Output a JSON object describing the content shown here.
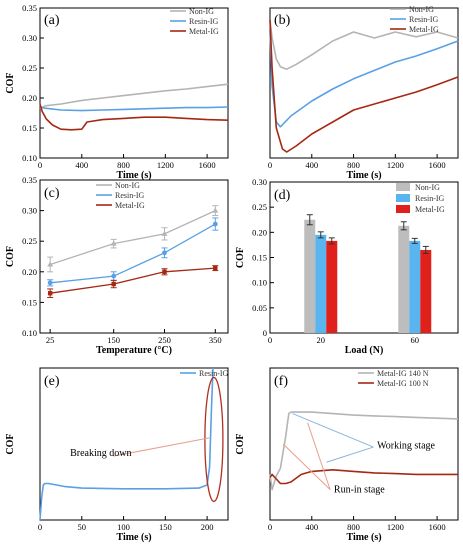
{
  "figure": {
    "colors": {
      "non_ig": "#b4b4b4",
      "resin_ig": "#5aa0e6",
      "metal_ig": "#a52814",
      "bar_non": "#bdbdbd",
      "bar_resin": "#5ab4f0",
      "bar_metal": "#e0201a",
      "ellipse": "#b03020",
      "annot_line": "#e6a08c"
    }
  },
  "chart_data": [
    {
      "panel": "(a)",
      "type": "line",
      "xlabel": "Time (s)",
      "ylabel": "COF",
      "xlim": [
        0,
        1800
      ],
      "ylim": [
        0.1,
        0.35
      ],
      "xticks": [
        "0",
        "400",
        "800",
        "1200",
        "1600"
      ],
      "yticks": [
        "0.10",
        "0.15",
        "0.20",
        "0.25",
        "0.30",
        "0.35"
      ],
      "legend": "top-right",
      "series": [
        {
          "name": "Non-IG",
          "color": "#b4b4b4",
          "x": [
            0,
            50,
            200,
            400,
            600,
            800,
            1000,
            1200,
            1400,
            1600,
            1800
          ],
          "y": [
            0.182,
            0.187,
            0.19,
            0.196,
            0.2,
            0.204,
            0.208,
            0.212,
            0.215,
            0.219,
            0.223
          ]
        },
        {
          "name": "Resin-IG",
          "color": "#5aa0e6",
          "x": [
            0,
            50,
            200,
            400,
            600,
            800,
            1000,
            1200,
            1400,
            1600,
            1800
          ],
          "y": [
            0.185,
            0.183,
            0.18,
            0.179,
            0.18,
            0.181,
            0.182,
            0.183,
            0.184,
            0.184,
            0.185
          ]
        },
        {
          "name": "Metal-IG",
          "color": "#a52814",
          "x": [
            0,
            20,
            60,
            120,
            200,
            300,
            400,
            450,
            600,
            800,
            1000,
            1200,
            1400,
            1600,
            1800
          ],
          "y": [
            0.19,
            0.178,
            0.165,
            0.155,
            0.148,
            0.147,
            0.148,
            0.16,
            0.164,
            0.166,
            0.168,
            0.168,
            0.166,
            0.164,
            0.163
          ]
        }
      ]
    },
    {
      "panel": "(b)",
      "type": "line",
      "xlabel": "Time (s)",
      "ylabel": "",
      "xlim": [
        0,
        1800
      ],
      "ylim": [
        0.1,
        0.35
      ],
      "xticks": [
        "0",
        "400",
        "800",
        "1200",
        "1600"
      ],
      "yticks": [],
      "legend": "top-right",
      "series": [
        {
          "name": "Non-IG",
          "color": "#b4b4b4",
          "x": [
            0,
            20,
            60,
            100,
            160,
            250,
            400,
            600,
            800,
            1000,
            1200,
            1400,
            1600,
            1800
          ],
          "y": [
            0.33,
            0.3,
            0.265,
            0.252,
            0.248,
            0.256,
            0.272,
            0.295,
            0.31,
            0.3,
            0.31,
            0.302,
            0.31,
            0.3
          ]
        },
        {
          "name": "Resin-IG",
          "color": "#5aa0e6",
          "x": [
            0,
            20,
            60,
            100,
            200,
            400,
            600,
            800,
            1000,
            1200,
            1400,
            1600,
            1800
          ],
          "y": [
            0.31,
            0.22,
            0.16,
            0.152,
            0.17,
            0.195,
            0.215,
            0.232,
            0.246,
            0.26,
            0.27,
            0.282,
            0.295
          ]
        },
        {
          "name": "Metal-IG",
          "color": "#a52814",
          "x": [
            0,
            20,
            60,
            120,
            160,
            250,
            400,
            600,
            800,
            1000,
            1200,
            1400,
            1600,
            1800
          ],
          "y": [
            0.33,
            0.25,
            0.15,
            0.115,
            0.11,
            0.12,
            0.14,
            0.16,
            0.18,
            0.19,
            0.2,
            0.21,
            0.222,
            0.235
          ]
        }
      ]
    },
    {
      "panel": "(c)",
      "type": "line",
      "xlabel": "Temperature (°C)",
      "ylabel": "COF",
      "categories": [
        "25",
        "150",
        "250",
        "350"
      ],
      "ylim": [
        0.1,
        0.35
      ],
      "xticks": [
        "25",
        "150",
        "250",
        "350"
      ],
      "yticks": [
        "0.10",
        "0.15",
        "0.20",
        "0.25",
        "0.30",
        "0.35"
      ],
      "legend": "top-right",
      "series": [
        {
          "name": "Non-IG",
          "color": "#b4b4b4",
          "values": [
            0.212,
            0.246,
            0.262,
            0.3
          ],
          "errors": [
            0.012,
            0.007,
            0.01,
            0.008
          ]
        },
        {
          "name": "Resin-IG",
          "color": "#5aa0e6",
          "values": [
            0.182,
            0.193,
            0.231,
            0.278
          ],
          "errors": [
            0.005,
            0.007,
            0.008,
            0.01
          ]
        },
        {
          "name": "Metal-IG",
          "color": "#a52814",
          "values": [
            0.165,
            0.18,
            0.2,
            0.206
          ],
          "errors": [
            0.007,
            0.006,
            0.005,
            0.004
          ]
        }
      ]
    },
    {
      "panel": "(d)",
      "type": "bar",
      "xlabel": "Load (N)",
      "ylabel": "COF",
      "categories": [
        "20",
        "60"
      ],
      "ylim": [
        0,
        0.3
      ],
      "yticks": [
        "0",
        "0.05",
        "0.10",
        "0.15",
        "0.20",
        "0.25",
        "0.30"
      ],
      "legend": "top-right",
      "series": [
        {
          "name": "Non-IG",
          "color": "#bdbdbd",
          "values": [
            0.225,
            0.213
          ],
          "errors": [
            0.01,
            0.008
          ]
        },
        {
          "name": "Resin-IG",
          "color": "#5ab4f0",
          "values": [
            0.195,
            0.183
          ],
          "errors": [
            0.006,
            0.005
          ]
        },
        {
          "name": "Metal-IG",
          "color": "#e0201a",
          "values": [
            0.183,
            0.165
          ],
          "errors": [
            0.006,
            0.007
          ]
        }
      ]
    },
    {
      "panel": "(e)",
      "type": "line",
      "xlabel": "Time (s)",
      "ylabel": "COF",
      "xlim": [
        0,
        225
      ],
      "ylim": [
        0,
        1
      ],
      "xticks": [
        "0",
        "50",
        "100",
        "150",
        "200"
      ],
      "yticks": [],
      "legend": "top-right",
      "annotations": [
        {
          "text": "Breaking down"
        }
      ],
      "series": [
        {
          "name": "Resin-IG",
          "color": "#5aa0e6",
          "x": [
            0,
            2,
            4,
            6,
            10,
            20,
            30,
            50,
            100,
            150,
            190,
            200,
            203,
            205,
            207
          ],
          "y": [
            0.0,
            0.15,
            0.23,
            0.24,
            0.24,
            0.23,
            0.22,
            0.21,
            0.205,
            0.205,
            0.21,
            0.23,
            0.35,
            0.7,
            1.0
          ]
        }
      ]
    },
    {
      "panel": "(f)",
      "type": "line",
      "xlabel": "Time (s)",
      "ylabel": "COF",
      "xlim": [
        0,
        1800
      ],
      "ylim": [
        0,
        1
      ],
      "xticks": [
        "0",
        "400",
        "800",
        "1200",
        "1600"
      ],
      "yticks": [],
      "legend": "top-right",
      "annotations": [
        {
          "text": "Working stage"
        },
        {
          "text": "Run-in stage"
        }
      ],
      "series": [
        {
          "name": "Metal-IG 140 N",
          "color": "#b4b4b4",
          "x": [
            0,
            20,
            60,
            100,
            150,
            180,
            200,
            400,
            600,
            800,
            1000,
            1200,
            1400,
            1600,
            1800
          ],
          "y": [
            0.3,
            0.2,
            0.29,
            0.34,
            0.55,
            0.7,
            0.71,
            0.71,
            0.7,
            0.69,
            0.685,
            0.68,
            0.675,
            0.67,
            0.665
          ]
        },
        {
          "name": "Metal-IG 100 N",
          "color": "#a52814",
          "x": [
            0,
            20,
            60,
            100,
            150,
            200,
            300,
            400,
            600,
            800,
            1000,
            1200,
            1400,
            1600,
            1800
          ],
          "y": [
            0.28,
            0.3,
            0.27,
            0.24,
            0.24,
            0.25,
            0.3,
            0.32,
            0.33,
            0.32,
            0.31,
            0.305,
            0.3,
            0.3,
            0.3
          ]
        }
      ]
    }
  ]
}
